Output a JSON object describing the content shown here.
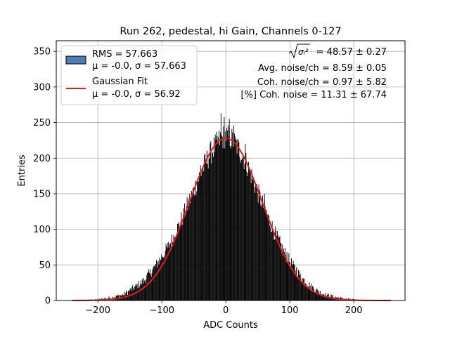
{
  "chart_data": {
    "type": "bar",
    "title": "Run 262, pedestal, hi Gain, Channels 0-127",
    "xlabel": "ADC Counts",
    "ylabel": "Entries",
    "xlim": [
      -265,
      280
    ],
    "ylim": [
      0,
      365
    ],
    "xticks": [
      -200,
      -100,
      0,
      100,
      200
    ],
    "xtick_labels": [
      "−200",
      "−100",
      "0",
      "100",
      "200"
    ],
    "yticks": [
      0,
      50,
      100,
      150,
      200,
      250,
      300,
      350
    ],
    "ytick_labels": [
      "0",
      "50",
      "100",
      "150",
      "200",
      "250",
      "300",
      "350"
    ],
    "grid": true,
    "legend_position": "top-left",
    "histogram": {
      "name": "RMS = 57.663",
      "stats_label": "μ = -0.0, σ = 57.663",
      "edge_color": "#000000",
      "fill_color": "#4c7fb5",
      "bin_width": 1,
      "x_range": [
        -240,
        258
      ],
      "peak_entries": 263,
      "std": 57.663,
      "x": [
        -240,
        -200,
        -180,
        -160,
        -150,
        -140,
        -130,
        -120,
        -110,
        -100,
        -90,
        -80,
        -70,
        -60,
        -50,
        -40,
        -30,
        -20,
        -10,
        0,
        10,
        20,
        30,
        40,
        50,
        60,
        70,
        80,
        90,
        100,
        110,
        120,
        130,
        140,
        150,
        160,
        180,
        200,
        230,
        258
      ],
      "values": [
        0,
        1,
        4,
        8,
        14,
        20,
        26,
        37,
        48,
        62,
        75,
        92,
        112,
        133,
        155,
        177,
        197,
        213,
        225,
        232,
        226,
        214,
        197,
        176,
        152,
        130,
        108,
        88,
        70,
        55,
        42,
        31,
        22,
        15,
        10,
        7,
        3,
        1,
        0,
        0
      ],
      "spikes": [
        [
          -90,
          75
        ],
        [
          -64,
          120
        ],
        [
          -40,
          190
        ],
        [
          -30,
          208
        ],
        [
          -8,
          263
        ],
        [
          -3,
          258
        ],
        [
          5,
          255
        ],
        [
          12,
          246
        ],
        [
          30,
          220
        ],
        [
          60,
          150
        ],
        [
          95,
          68
        ],
        [
          110,
          47
        ],
        [
          130,
          20
        ],
        [
          145,
          14
        ]
      ]
    },
    "fit": {
      "name": "Gaussian Fit",
      "stats_label": "μ = -0.0, σ = 56.92",
      "color": "#e41a1c",
      "type": "gaussian",
      "amplitude": 228,
      "mean": 0.0,
      "sigma": 56.92,
      "x_range": [
        -240,
        258
      ]
    },
    "annotations": {
      "sigma_i_label": "σᵢ²",
      "sigma_i_value": " = 48.57 ± 0.27",
      "avg_noise": "Avg. noise/ch = 8.59 ± 0.05",
      "coh_noise": "Coh. noise/ch = 0.97 ± 5.82",
      "coh_noise_pct": "[%] Coh. noise = 11.31 ± 67.74"
    }
  }
}
